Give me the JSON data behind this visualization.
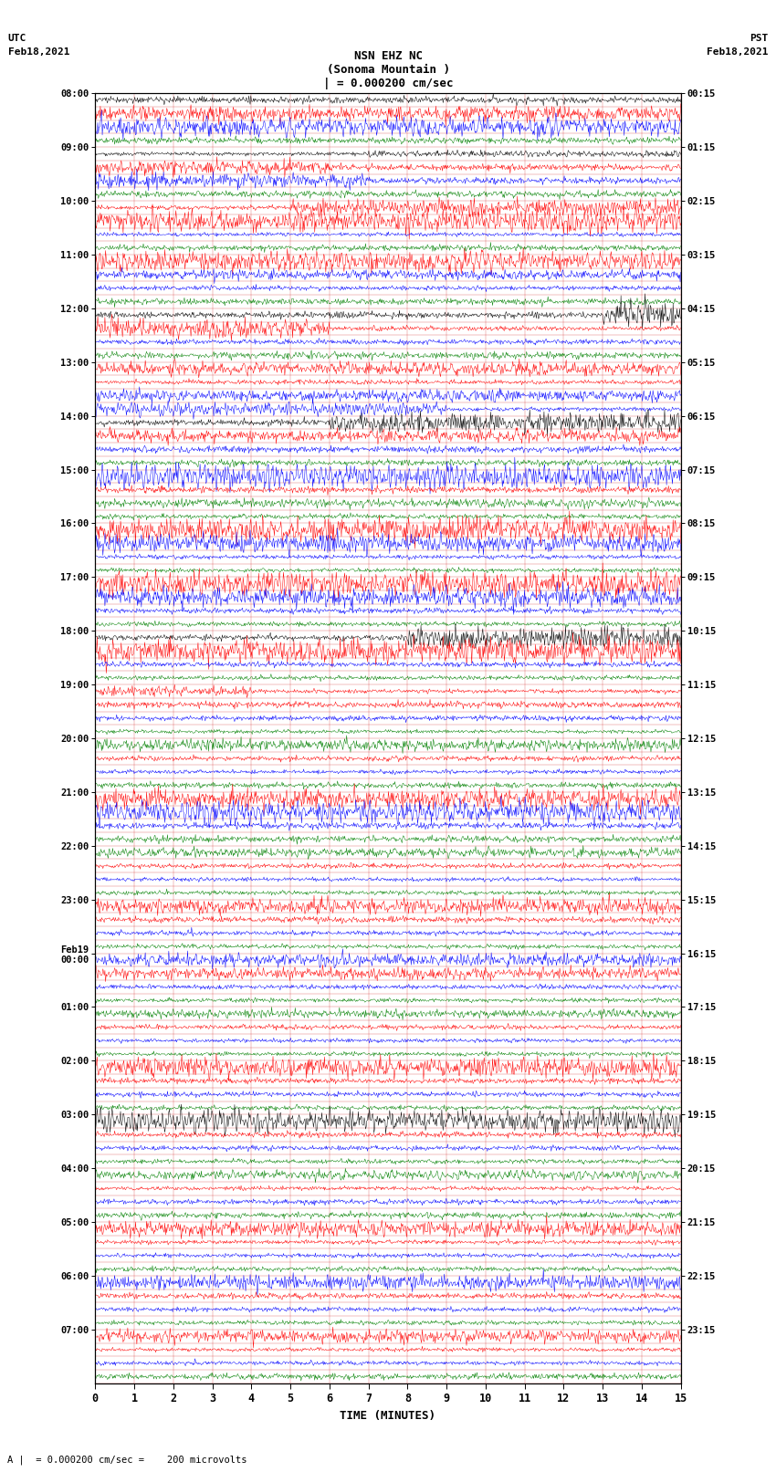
{
  "title_line1": "NSN EHZ NC",
  "title_line2": "(Sonoma Mountain )",
  "title_line3": "| = 0.000200 cm/sec",
  "bottom_label": "TIME (MINUTES)",
  "scale_label": "A |  = 0.000200 cm/sec =    200 microvolts",
  "utc_labels": [
    "08:00",
    "09:00",
    "10:00",
    "11:00",
    "12:00",
    "13:00",
    "14:00",
    "15:00",
    "16:00",
    "17:00",
    "18:00",
    "19:00",
    "20:00",
    "21:00",
    "22:00",
    "23:00",
    "Feb19\n00:00",
    "01:00",
    "02:00",
    "03:00",
    "04:00",
    "05:00",
    "06:00",
    "07:00"
  ],
  "pst_labels": [
    "00:15",
    "01:15",
    "02:15",
    "03:15",
    "04:15",
    "05:15",
    "06:15",
    "07:15",
    "08:15",
    "09:15",
    "10:15",
    "11:15",
    "12:15",
    "13:15",
    "14:15",
    "15:15",
    "16:15",
    "17:15",
    "18:15",
    "19:15",
    "20:15",
    "21:15",
    "22:15",
    "23:15"
  ],
  "trace_colors": [
    "black",
    "red",
    "blue",
    "green"
  ],
  "bg_color": "white",
  "grid_color": "#cc0000",
  "xmin": 0,
  "xmax": 15,
  "fig_width": 8.5,
  "fig_height": 16.13,
  "dpi": 100,
  "n_groups": 24,
  "traces_per_group": 4,
  "high_amp_rows": [
    [
      1,
      1,
      0.0,
      15.0,
      3.5
    ],
    [
      2,
      2,
      0.0,
      15.0,
      3.0
    ],
    [
      4,
      0,
      7.0,
      15.0,
      1.8
    ],
    [
      5,
      1,
      0.0,
      6.0,
      2.5
    ],
    [
      6,
      2,
      0.0,
      7.0,
      3.0
    ],
    [
      8,
      1,
      5.0,
      15.0,
      3.5
    ],
    [
      9,
      1,
      0.0,
      15.0,
      4.0
    ],
    [
      12,
      1,
      0.0,
      15.0,
      4.5
    ],
    [
      13,
      2,
      0.0,
      15.0,
      2.5
    ],
    [
      16,
      0,
      13.0,
      15.0,
      4.0
    ],
    [
      17,
      1,
      0.0,
      6.0,
      4.0
    ],
    [
      20,
      1,
      0.0,
      15.0,
      3.0
    ],
    [
      22,
      2,
      0.0,
      15.0,
      3.0
    ],
    [
      23,
      2,
      0.0,
      9.0,
      2.5
    ],
    [
      24,
      0,
      6.0,
      15.0,
      3.5
    ],
    [
      25,
      1,
      0.0,
      15.0,
      3.0
    ],
    [
      28,
      2,
      0.0,
      15.0,
      3.5
    ],
    [
      30,
      3,
      0.0,
      15.0,
      2.0
    ],
    [
      32,
      1,
      0.0,
      15.0,
      4.0
    ],
    [
      33,
      2,
      0.0,
      15.0,
      3.0
    ],
    [
      36,
      1,
      0.0,
      15.0,
      3.5
    ],
    [
      37,
      2,
      0.0,
      15.0,
      3.0
    ],
    [
      40,
      0,
      8.0,
      15.0,
      4.0
    ],
    [
      41,
      1,
      0.0,
      15.0,
      4.5
    ],
    [
      44,
      1,
      0.0,
      4.0,
      2.5
    ],
    [
      48,
      3,
      0.0,
      15.0,
      2.5
    ],
    [
      52,
      1,
      0.0,
      15.0,
      4.0
    ],
    [
      53,
      2,
      0.0,
      15.0,
      3.0
    ],
    [
      56,
      3,
      0.0,
      15.0,
      2.5
    ],
    [
      60,
      1,
      0.0,
      15.0,
      3.5
    ],
    [
      64,
      2,
      0.0,
      15.0,
      3.0
    ],
    [
      65,
      1,
      0.0,
      15.0,
      2.5
    ],
    [
      68,
      3,
      0.0,
      15.0,
      2.0
    ],
    [
      72,
      1,
      0.0,
      15.0,
      3.0
    ],
    [
      76,
      0,
      0.0,
      15.0,
      3.5
    ],
    [
      80,
      3,
      0.0,
      15.0,
      2.0
    ],
    [
      84,
      1,
      0.0,
      15.0,
      3.0
    ],
    [
      88,
      2,
      0.0,
      15.0,
      2.5
    ],
    [
      92,
      1,
      0.0,
      15.0,
      3.0
    ]
  ]
}
